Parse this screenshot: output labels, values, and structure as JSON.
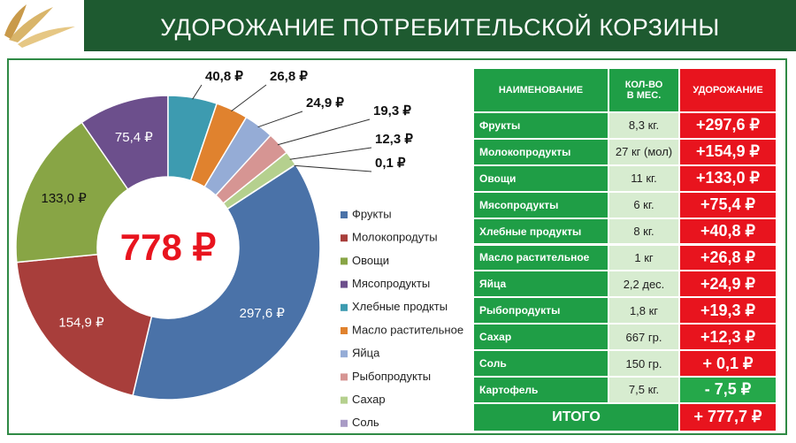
{
  "header": {
    "title": "УДОРОЖАНИЕ ПОТРЕБИТЕЛЬСКОЙ КОРЗИНЫ"
  },
  "chart_data": {
    "type": "donut",
    "center_label": "778 ₽",
    "categories": [
      "Фрукты",
      "Молокопродуты",
      "Овощи",
      "Мясопродукты",
      "Хлебные продкты",
      "Масло растительное",
      "Яйца",
      "Рыбопродукты",
      "Сахар",
      "Соль"
    ],
    "values": [
      297.6,
      154.9,
      133.0,
      75.4,
      40.8,
      26.8,
      24.9,
      19.3,
      12.3,
      0.1
    ],
    "value_labels": [
      "297,6 ₽",
      "154,9 ₽",
      "133,0 ₽",
      "75,4 ₽",
      "40,8 ₽",
      "26,8 ₽",
      "24,9 ₽",
      "19,3 ₽",
      "12,3 ₽",
      "0,1 ₽"
    ],
    "colors": [
      "#4a72a8",
      "#a83e3b",
      "#88a545",
      "#6c4f8c",
      "#3d9bb0",
      "#e0822e",
      "#95acd6",
      "#d69593",
      "#b5d08e",
      "#a99bc5"
    ],
    "legend": "right"
  },
  "table": {
    "columns": [
      "НАИМЕНОВАНИЕ",
      "КОЛ-ВО В МЕС.",
      "УДОРОЖАНИЕ"
    ],
    "rows": [
      [
        "Фрукты",
        "8,3 кг.",
        "+297,6 ₽"
      ],
      [
        "Молокопродукты",
        "27 кг (мол)",
        "+154,9 ₽"
      ],
      [
        "Овощи",
        "11 кг.",
        "+133,0 ₽"
      ],
      [
        "Мясопродукты",
        "6 кг.",
        "+75,4 ₽"
      ],
      [
        "Хлебные продукты",
        "8 кг.",
        "+40,8 ₽"
      ],
      [
        "Масло растительное",
        "1 кг",
        "+26,8 ₽"
      ],
      [
        "Яйца",
        "2,2 дес.",
        "+24,9 ₽"
      ],
      [
        "Рыбопродукты",
        "1,8 кг",
        "+19,3 ₽"
      ],
      [
        "Сахар",
        "667 гр.",
        "+12,3 ₽"
      ],
      [
        "Соль",
        "150 гр.",
        "+ 0,1 ₽"
      ],
      [
        "Картофель",
        "7,5 кг.",
        "- 7,5 ₽"
      ]
    ],
    "total": [
      "ИТОГО",
      "+ 777,7 ₽"
    ]
  }
}
